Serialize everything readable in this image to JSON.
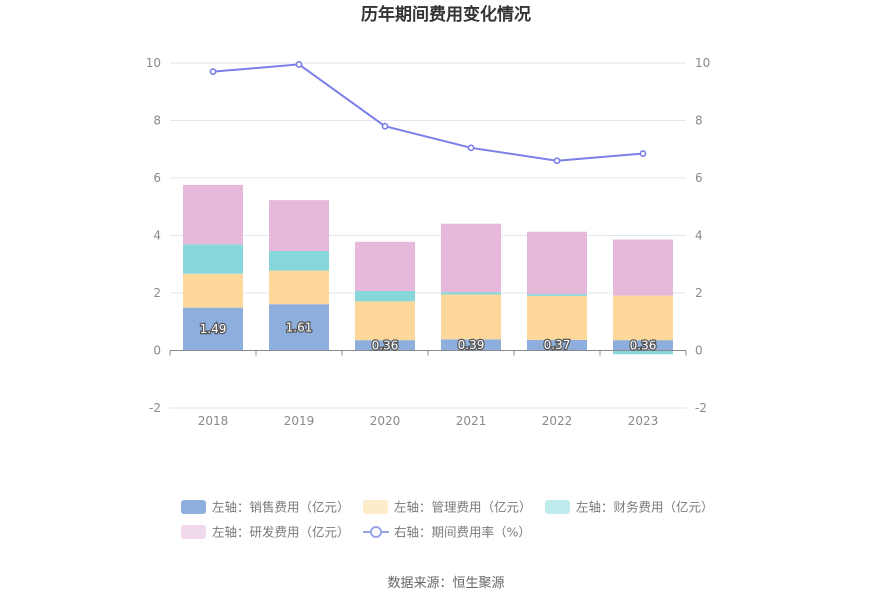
{
  "chart_data": {
    "type": "bar",
    "title": "历年期间费用变化情况",
    "categories": [
      "2018",
      "2019",
      "2020",
      "2021",
      "2022",
      "2023"
    ],
    "series": [
      {
        "name": "左轴：销售费用（亿元）",
        "axis": "left",
        "stack": true,
        "color": "#8eaedd",
        "values": [
          1.49,
          1.61,
          0.36,
          0.39,
          0.37,
          0.36
        ],
        "show_labels": true
      },
      {
        "name": "左轴：管理费用（亿元）",
        "axis": "left",
        "stack": true,
        "color": "#fdd89a",
        "values": [
          1.18,
          1.17,
          1.35,
          1.56,
          1.53,
          1.55
        ]
      },
      {
        "name": "左轴：财务费用（亿元）",
        "axis": "left",
        "stack": true,
        "color": "#86d6da",
        "values": [
          1.02,
          0.68,
          0.36,
          0.08,
          0.06,
          -0.13
        ]
      },
      {
        "name": "左轴：研发费用（亿元）",
        "axis": "left",
        "stack": true,
        "color": "#e6b9da",
        "values": [
          2.07,
          1.77,
          1.71,
          2.38,
          2.17,
          1.95
        ]
      },
      {
        "name": "右轴：期间费用率（%）",
        "axis": "right",
        "type": "line",
        "color": "#7b7fe8",
        "values": [
          9.7,
          9.95,
          7.8,
          7.05,
          6.6,
          6.85
        ]
      }
    ],
    "left_axis": {
      "min": -2,
      "max": 10,
      "ticks": [
        "-2",
        "0",
        "2",
        "4",
        "6",
        "8",
        "10"
      ]
    },
    "right_axis": {
      "min": -2,
      "max": 10,
      "ticks": [
        "-2",
        "0",
        "2",
        "4",
        "6",
        "8",
        "10"
      ]
    },
    "grid": true,
    "legend_position": "bottom"
  },
  "legend": [
    {
      "label": "左轴：销售费用（亿元）",
      "color": "#8eaedd",
      "kind": "box"
    },
    {
      "label": "左轴：管理费用（亿元）",
      "color": "#fdebc9",
      "kind": "box"
    },
    {
      "label": "左轴：财务费用（亿元）",
      "color": "#c0ebed",
      "kind": "box"
    },
    {
      "label": "左轴：研发费用（亿元）",
      "color": "#f1d9ec",
      "kind": "box"
    },
    {
      "label": "右轴：期间费用率（%）",
      "color": "#9aa5e8",
      "kind": "line"
    }
  ],
  "source": "数据来源：恒生聚源"
}
